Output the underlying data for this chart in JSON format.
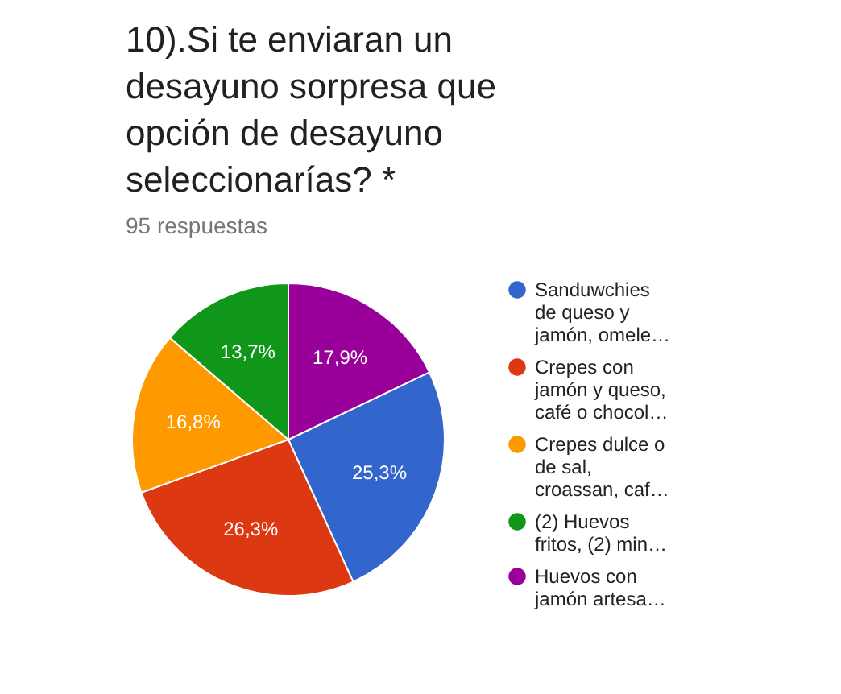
{
  "chart_data": {
    "type": "pie",
    "title": "10).Si te enviaran un desayuno sorpresa que opción de desayuno seleccionarías? *",
    "subtitle": "95 respuestas",
    "categories": [
      "Sanduwchies de queso y jamón, omele…",
      "Crepes con jamón y queso, café o chocol…",
      "Crepes dulce o de sal, croassan, caf…",
      "(2) Huevos fritos, (2) min…",
      "Huevos con jamón artesa…"
    ],
    "values": [
      25.3,
      26.3,
      16.8,
      13.7,
      17.9
    ],
    "value_labels": [
      "25,3%",
      "26,3%",
      "16,8%",
      "13,7%",
      "17,9%"
    ],
    "colors": [
      "#3366cc",
      "#dc3912",
      "#ff9900",
      "#109618",
      "#990099"
    ],
    "legend": "right"
  }
}
